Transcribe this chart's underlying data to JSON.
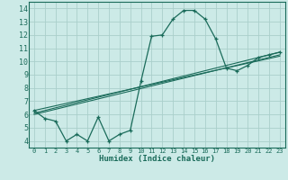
{
  "xlabel": "Humidex (Indice chaleur)",
  "background_color": "#cceae7",
  "grid_color": "#aacfcb",
  "line_color": "#1a6b5a",
  "xlim": [
    -0.5,
    23.5
  ],
  "ylim": [
    3.5,
    14.5
  ],
  "xticks": [
    0,
    1,
    2,
    3,
    4,
    5,
    6,
    7,
    8,
    9,
    10,
    11,
    12,
    13,
    14,
    15,
    16,
    17,
    18,
    19,
    20,
    21,
    22,
    23
  ],
  "yticks": [
    4,
    5,
    6,
    7,
    8,
    9,
    10,
    11,
    12,
    13,
    14
  ],
  "line1_x": [
    0,
    1,
    2,
    3,
    4,
    5,
    6,
    7,
    8,
    9,
    10,
    11,
    12,
    13,
    14,
    15,
    16,
    17,
    18,
    19,
    20,
    21,
    22,
    23
  ],
  "line1_y": [
    6.3,
    5.7,
    5.5,
    4.0,
    4.5,
    4.0,
    5.8,
    4.0,
    4.5,
    4.8,
    8.5,
    11.9,
    12.0,
    13.2,
    13.85,
    13.85,
    13.2,
    11.7,
    9.5,
    9.3,
    9.7,
    10.3,
    10.5,
    10.7
  ],
  "line2_x": [
    0,
    23
  ],
  "line2_y": [
    6.0,
    10.5
  ],
  "line3_x": [
    0,
    23
  ],
  "line3_y": [
    6.1,
    10.7
  ],
  "line4_x": [
    0,
    23
  ],
  "line4_y": [
    6.3,
    10.4
  ]
}
